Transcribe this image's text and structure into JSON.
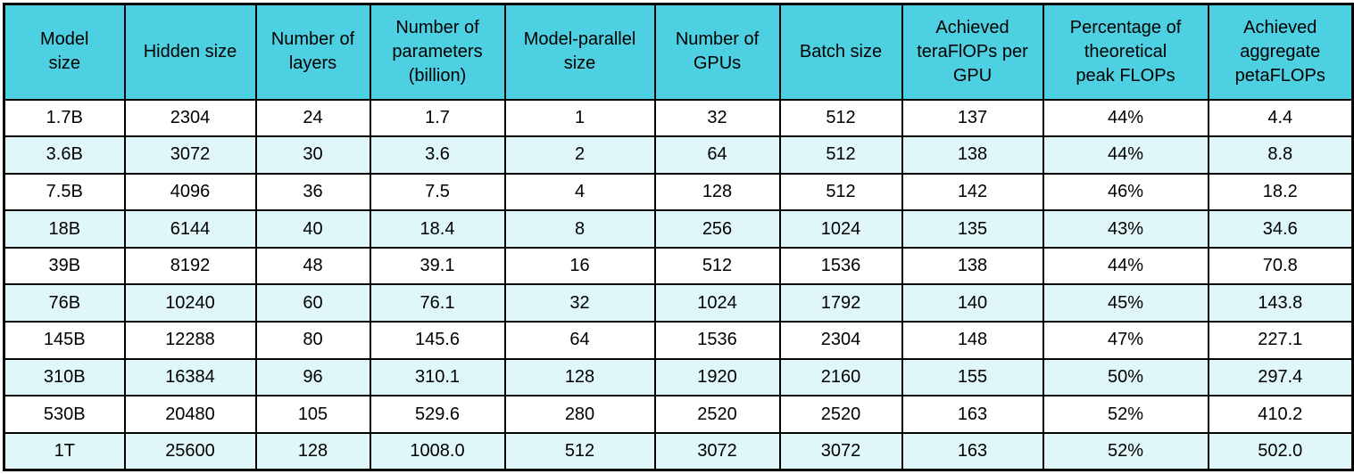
{
  "colors": {
    "header_bg": "#4DD0E1",
    "row_odd_bg": "#FFFFFF",
    "row_even_bg": "#E0F7FA",
    "border": "#000000",
    "text": "#000000"
  },
  "table": {
    "columns": [
      "Model\nsize",
      "Hidden size",
      "Number of\nlayers",
      "Number of\nparameters\n(billion)",
      "Model-parallel\nsize",
      "Number of\nGPUs",
      "Batch size",
      "Achieved\nteraFlOPs per\nGPU",
      "Percentage of\ntheoretical\npeak FLOPs",
      "Achieved\naggregate\npetaFLOPs"
    ],
    "column_keys": [
      "model-size",
      "hidden-size",
      "num-layers",
      "num-parameters",
      "model-parallel-size",
      "num-gpus",
      "batch-size",
      "achieved-teraflops-per-gpu",
      "pct-theoretical-peak-flops",
      "achieved-aggregate-petaflops"
    ],
    "rows": [
      [
        "1.7B",
        "2304",
        "24",
        "1.7",
        "1",
        "32",
        "512",
        "137",
        "44%",
        "4.4"
      ],
      [
        "3.6B",
        "3072",
        "30",
        "3.6",
        "2",
        "64",
        "512",
        "138",
        "44%",
        "8.8"
      ],
      [
        "7.5B",
        "4096",
        "36",
        "7.5",
        "4",
        "128",
        "512",
        "142",
        "46%",
        "18.2"
      ],
      [
        "18B",
        "6144",
        "40",
        "18.4",
        "8",
        "256",
        "1024",
        "135",
        "43%",
        "34.6"
      ],
      [
        "39B",
        "8192",
        "48",
        "39.1",
        "16",
        "512",
        "1536",
        "138",
        "44%",
        "70.8"
      ],
      [
        "76B",
        "10240",
        "60",
        "76.1",
        "32",
        "1024",
        "1792",
        "140",
        "45%",
        "143.8"
      ],
      [
        "145B",
        "12288",
        "80",
        "145.6",
        "64",
        "1536",
        "2304",
        "148",
        "47%",
        "227.1"
      ],
      [
        "310B",
        "16384",
        "96",
        "310.1",
        "128",
        "1920",
        "2160",
        "155",
        "50%",
        "297.4"
      ],
      [
        "530B",
        "20480",
        "105",
        "529.6",
        "280",
        "2520",
        "2520",
        "163",
        "52%",
        "410.2"
      ],
      [
        "1T",
        "25600",
        "128",
        "1008.0",
        "512",
        "3072",
        "3072",
        "163",
        "52%",
        "502.0"
      ]
    ]
  },
  "chart_data": {
    "type": "table",
    "title": "",
    "columns": [
      "Model size",
      "Hidden size",
      "Number of layers",
      "Number of parameters (billion)",
      "Model-parallel size",
      "Number of GPUs",
      "Batch size",
      "Achieved teraFlOPs per GPU",
      "Percentage of theoretical peak FLOPs",
      "Achieved aggregate petaFLOPs"
    ],
    "rows": [
      [
        "1.7B",
        2304,
        24,
        1.7,
        1,
        32,
        512,
        137,
        "44%",
        4.4
      ],
      [
        "3.6B",
        3072,
        30,
        3.6,
        2,
        64,
        512,
        138,
        "44%",
        8.8
      ],
      [
        "7.5B",
        4096,
        36,
        7.5,
        4,
        128,
        512,
        142,
        "46%",
        18.2
      ],
      [
        "18B",
        6144,
        40,
        18.4,
        8,
        256,
        1024,
        135,
        "43%",
        34.6
      ],
      [
        "39B",
        8192,
        48,
        39.1,
        16,
        512,
        1536,
        138,
        "44%",
        70.8
      ],
      [
        "76B",
        10240,
        60,
        76.1,
        32,
        1024,
        1792,
        140,
        "45%",
        143.8
      ],
      [
        "145B",
        12288,
        80,
        145.6,
        64,
        1536,
        2304,
        148,
        "47%",
        227.1
      ],
      [
        "310B",
        16384,
        96,
        310.1,
        128,
        1920,
        2160,
        155,
        "50%",
        297.4
      ],
      [
        "530B",
        20480,
        105,
        529.6,
        280,
        2520,
        2520,
        163,
        "52%",
        410.2
      ],
      [
        "1T",
        25600,
        128,
        1008.0,
        512,
        3072,
        3072,
        163,
        "52%",
        502.0
      ]
    ]
  }
}
